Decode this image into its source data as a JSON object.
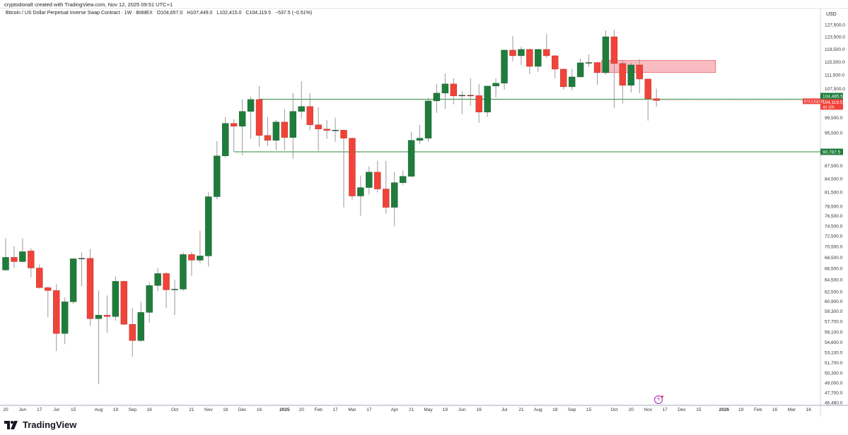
{
  "header": {
    "credit": "cryptodonalt created with TradingView.com, Nov 12, 2025 09:51 UTC+1",
    "symbol": "Bitcoin / US Dollar Perpetual Inverse Swap Contract · 1W · BitMEX",
    "o": "O104,657.0",
    "h": "H107,449.0",
    "l": "L102,415.0",
    "c": "C104,119.5",
    "change": "−537.5 (−0.51%)"
  },
  "axis": {
    "currency": "USD",
    "y_ticks": [
      "127,500.0",
      "123,500.0",
      "119,500.0",
      "115,500.0",
      "111,500.0",
      "107,500.0",
      "99,500.0",
      "95,500.0",
      "87,500.0",
      "84,500.0",
      "81,500.0",
      "78,500.0",
      "76,500.0",
      "74,500.0",
      "72,500.0",
      "70,500.0",
      "68,500.0",
      "66,500.0",
      "64,500.0",
      "62,500.0",
      "60,900.0",
      "59,300.0",
      "57,700.0",
      "56,100.0",
      "54,600.0",
      "53,100.0",
      "51,700.0",
      "50,300.0",
      "49,000.0",
      "47,700.0",
      "46,460.0"
    ],
    "x_ticks": [
      {
        "label": "20",
        "week": 0
      },
      {
        "label": "Jun",
        "week": 2
      },
      {
        "label": "17",
        "week": 4
      },
      {
        "label": "Jul",
        "week": 6
      },
      {
        "label": "15",
        "week": 8
      },
      {
        "label": "Aug",
        "week": 11
      },
      {
        "label": "19",
        "week": 13
      },
      {
        "label": "Sep",
        "week": 15
      },
      {
        "label": "16",
        "week": 17
      },
      {
        "label": "Oct",
        "week": 20
      },
      {
        "label": "21",
        "week": 22
      },
      {
        "label": "Nov",
        "week": 24
      },
      {
        "label": "18",
        "week": 26
      },
      {
        "label": "Dec",
        "week": 28
      },
      {
        "label": "16",
        "week": 30
      },
      {
        "label": "2025",
        "week": 33,
        "bold": true
      },
      {
        "label": "20",
        "week": 35
      },
      {
        "label": "Feb",
        "week": 37
      },
      {
        "label": "17",
        "week": 39
      },
      {
        "label": "Mar",
        "week": 41
      },
      {
        "label": "17",
        "week": 43
      },
      {
        "label": "Apr",
        "week": 46
      },
      {
        "label": "21",
        "week": 48
      },
      {
        "label": "May",
        "week": 50
      },
      {
        "label": "19",
        "week": 52
      },
      {
        "label": "Jun",
        "week": 54
      },
      {
        "label": "16",
        "week": 56
      },
      {
        "label": "Jul",
        "week": 59
      },
      {
        "label": "21",
        "week": 61
      },
      {
        "label": "Aug",
        "week": 63
      },
      {
        "label": "18",
        "week": 65
      },
      {
        "label": "Sep",
        "week": 67
      },
      {
        "label": "15",
        "week": 69
      },
      {
        "label": "Oct",
        "week": 72
      },
      {
        "label": "20",
        "week": 74
      },
      {
        "label": "Nov",
        "week": 76
      },
      {
        "label": "17",
        "week": 78
      },
      {
        "label": "Dec",
        "week": 80
      },
      {
        "label": "15",
        "week": 82
      },
      {
        "label": "2026",
        "week": 85,
        "bold": true
      },
      {
        "label": "19",
        "week": 87
      },
      {
        "label": "Feb",
        "week": 89
      },
      {
        "label": "16",
        "week": 91
      },
      {
        "label": "Mar",
        "week": 93
      },
      {
        "label": "16",
        "week": 95
      }
    ]
  },
  "colors": {
    "up": "#1f7d3c",
    "down": "#f0433a",
    "level": "#2e8b3e",
    "zone_fill": "#f7b4bb",
    "zone_stroke": "#e5424d",
    "axis_line": "#d1d4dc"
  },
  "candles": [
    [
      66200,
      72060,
      66080,
      68480
    ],
    [
      68480,
      70570,
      66560,
      67700
    ],
    [
      67700,
      72060,
      67570,
      69520
    ],
    [
      69660,
      70170,
      64950,
      66560
    ],
    [
      66560,
      67200,
      63000,
      63150
    ],
    [
      63150,
      63330,
      58340,
      62670
    ],
    [
      62670,
      63740,
      53310,
      55870
    ],
    [
      55870,
      61510,
      54320,
      60810
    ],
    [
      60810,
      68350,
      60500,
      68220
    ],
    [
      68220,
      69390,
      63390,
      68300
    ],
    [
      68300,
      70030,
      57040,
      58120
    ],
    [
      58120,
      62670,
      48780,
      58680
    ],
    [
      58680,
      61860,
      55980,
      58460
    ],
    [
      58460,
      65080,
      57800,
      64230
    ],
    [
      64230,
      64350,
      57200,
      57260
    ],
    [
      57260,
      59790,
      52510,
      54830
    ],
    [
      54830,
      60810,
      54630,
      59110
    ],
    [
      59110,
      64110,
      57470,
      63510
    ],
    [
      63510,
      66560,
      62560,
      65580
    ],
    [
      65580,
      65800,
      59790,
      62790
    ],
    [
      62790,
      64480,
      58680,
      62900
    ],
    [
      62900,
      69390,
      62560,
      69000
    ],
    [
      69000,
      69520,
      65200,
      67960
    ],
    [
      67960,
      73560,
      67450,
      68740
    ],
    [
      68740,
      81590,
      66820,
      80530
    ],
    [
      80530,
      93440,
      80000,
      89810
    ],
    [
      89810,
      99620,
      89450,
      97950
    ],
    [
      97950,
      99060,
      90840,
      97210
    ],
    [
      97210,
      104410,
      89980,
      101130
    ],
    [
      101130,
      105210,
      93970,
      104410
    ],
    [
      104410,
      108220,
      92040,
      94850
    ],
    [
      94850,
      99620,
      92220,
      93620
    ],
    [
      93620,
      98850,
      91170,
      98300
    ],
    [
      98300,
      101680,
      91170,
      94330
    ],
    [
      94330,
      106200,
      89150,
      101130
    ],
    [
      101130,
      109670,
      99240,
      102470
    ],
    [
      102470,
      106200,
      96120,
      97580
    ],
    [
      97580,
      102270,
      91010,
      96470
    ],
    [
      96470,
      98850,
      93970,
      96120
    ],
    [
      96120,
      99440,
      93260,
      96200
    ],
    [
      96200,
      96300,
      78270,
      94150
    ],
    [
      94150,
      94300,
      79910,
      80680
    ],
    [
      80680,
      85200,
      76540,
      82520
    ],
    [
      82520,
      87320,
      80990,
      85990
    ],
    [
      85990,
      88640,
      81440,
      82210
    ],
    [
      82210,
      88640,
      76960,
      78270
    ],
    [
      78270,
      86010,
      74400,
      83610
    ],
    [
      83610,
      86340,
      83150,
      85040
    ],
    [
      85040,
      95760,
      84880,
      93620
    ],
    [
      93620,
      97580,
      92730,
      94150
    ],
    [
      94150,
      104820,
      93260,
      104010
    ],
    [
      104010,
      108840,
      100750,
      106200
    ],
    [
      106200,
      111940,
      101880,
      108840
    ],
    [
      108840,
      110490,
      103050,
      105410
    ],
    [
      105410,
      106810,
      100370,
      105600
    ],
    [
      105600,
      110490,
      102660,
      105500
    ],
    [
      105500,
      108840,
      98110,
      100940
    ],
    [
      100940,
      108300,
      99620,
      108220
    ],
    [
      108220,
      110490,
      105010,
      109050
    ],
    [
      109050,
      119200,
      107210,
      119140
    ],
    [
      119140,
      123700,
      115600,
      117350
    ],
    [
      117350,
      120270,
      114510,
      119360
    ],
    [
      119360,
      119590,
      111750,
      114070
    ],
    [
      114070,
      119500,
      112380,
      119360
    ],
    [
      119360,
      124410,
      116690,
      117350
    ],
    [
      117350,
      117500,
      110490,
      113230
    ],
    [
      113230,
      113400,
      107210,
      108010
    ],
    [
      108010,
      113230,
      107000,
      110900
    ],
    [
      110900,
      116460,
      110700,
      115160
    ],
    [
      115160,
      117800,
      113880,
      115250
    ],
    [
      115250,
      115400,
      108640,
      112160
    ],
    [
      112160,
      125570,
      111540,
      123470
    ],
    [
      123470,
      125810,
      102070,
      114950
    ],
    [
      114950,
      116040,
      103250,
      108430
    ],
    [
      108430,
      115160,
      106400,
      114510
    ],
    [
      114510,
      116240,
      106200,
      110270
    ],
    [
      110270,
      110400,
      98680,
      104657
    ],
    [
      104657,
      107449,
      102415,
      104119.5
    ]
  ],
  "levels": [
    {
      "price": 104485.5,
      "label": "104,485.5",
      "from_week": 30
    },
    {
      "price": 90787.5,
      "label": "90,787.5",
      "from_week": 27
    }
  ],
  "zone": {
    "top": 115900,
    "bottom": 112200,
    "from_week": 70.5,
    "to_week": 84
  },
  "last_price": {
    "label": "104,119.5",
    "countdown": "4d 16h",
    "symbol": "BTCUSD.P"
  },
  "brand": "TradingView"
}
